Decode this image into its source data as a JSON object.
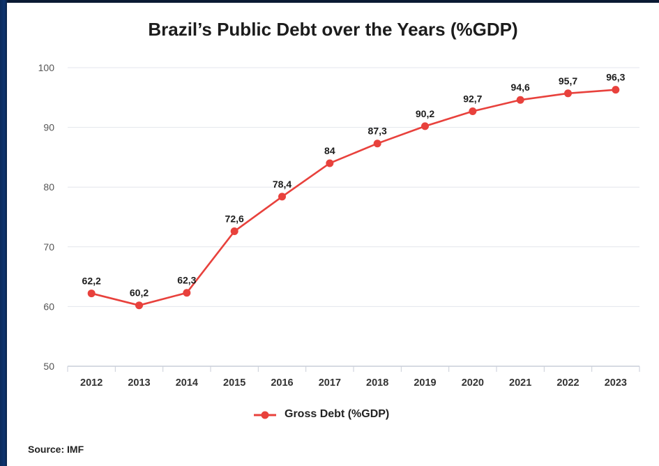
{
  "page": {
    "title": "Brazil’s Public Debt over the Years (%GDP)",
    "source": "Source: IMF"
  },
  "colors": {
    "series": "#e8413c",
    "grid": "#e3e6ec",
    "axis_text": "#555555",
    "label_text": "#1c1c1c",
    "background": "#ffffff"
  },
  "chart_data": {
    "type": "line",
    "title": "Brazil’s Public Debt over the Years (%GDP)",
    "xlabel": "",
    "ylabel": "",
    "categories": [
      "2012",
      "2013",
      "2014",
      "2015",
      "2016",
      "2017",
      "2018",
      "2019",
      "2020",
      "2021",
      "2022",
      "2023"
    ],
    "series": [
      {
        "name": "Gross Debt (%GDP)",
        "values": [
          62.2,
          60.2,
          62.3,
          72.6,
          78.4,
          84,
          87.3,
          90.2,
          92.7,
          94.6,
          95.7,
          96.3
        ],
        "labels": [
          "62,2",
          "60,2",
          "62,3",
          "72,6",
          "78,4",
          "84",
          "87,3",
          "90,2",
          "92,7",
          "94,6",
          "95,7",
          "96,3"
        ]
      }
    ],
    "ylim": [
      50,
      100
    ],
    "yticks": [
      50,
      60,
      70,
      80,
      90,
      100
    ],
    "grid": true,
    "legend_position": "bottom-center"
  }
}
